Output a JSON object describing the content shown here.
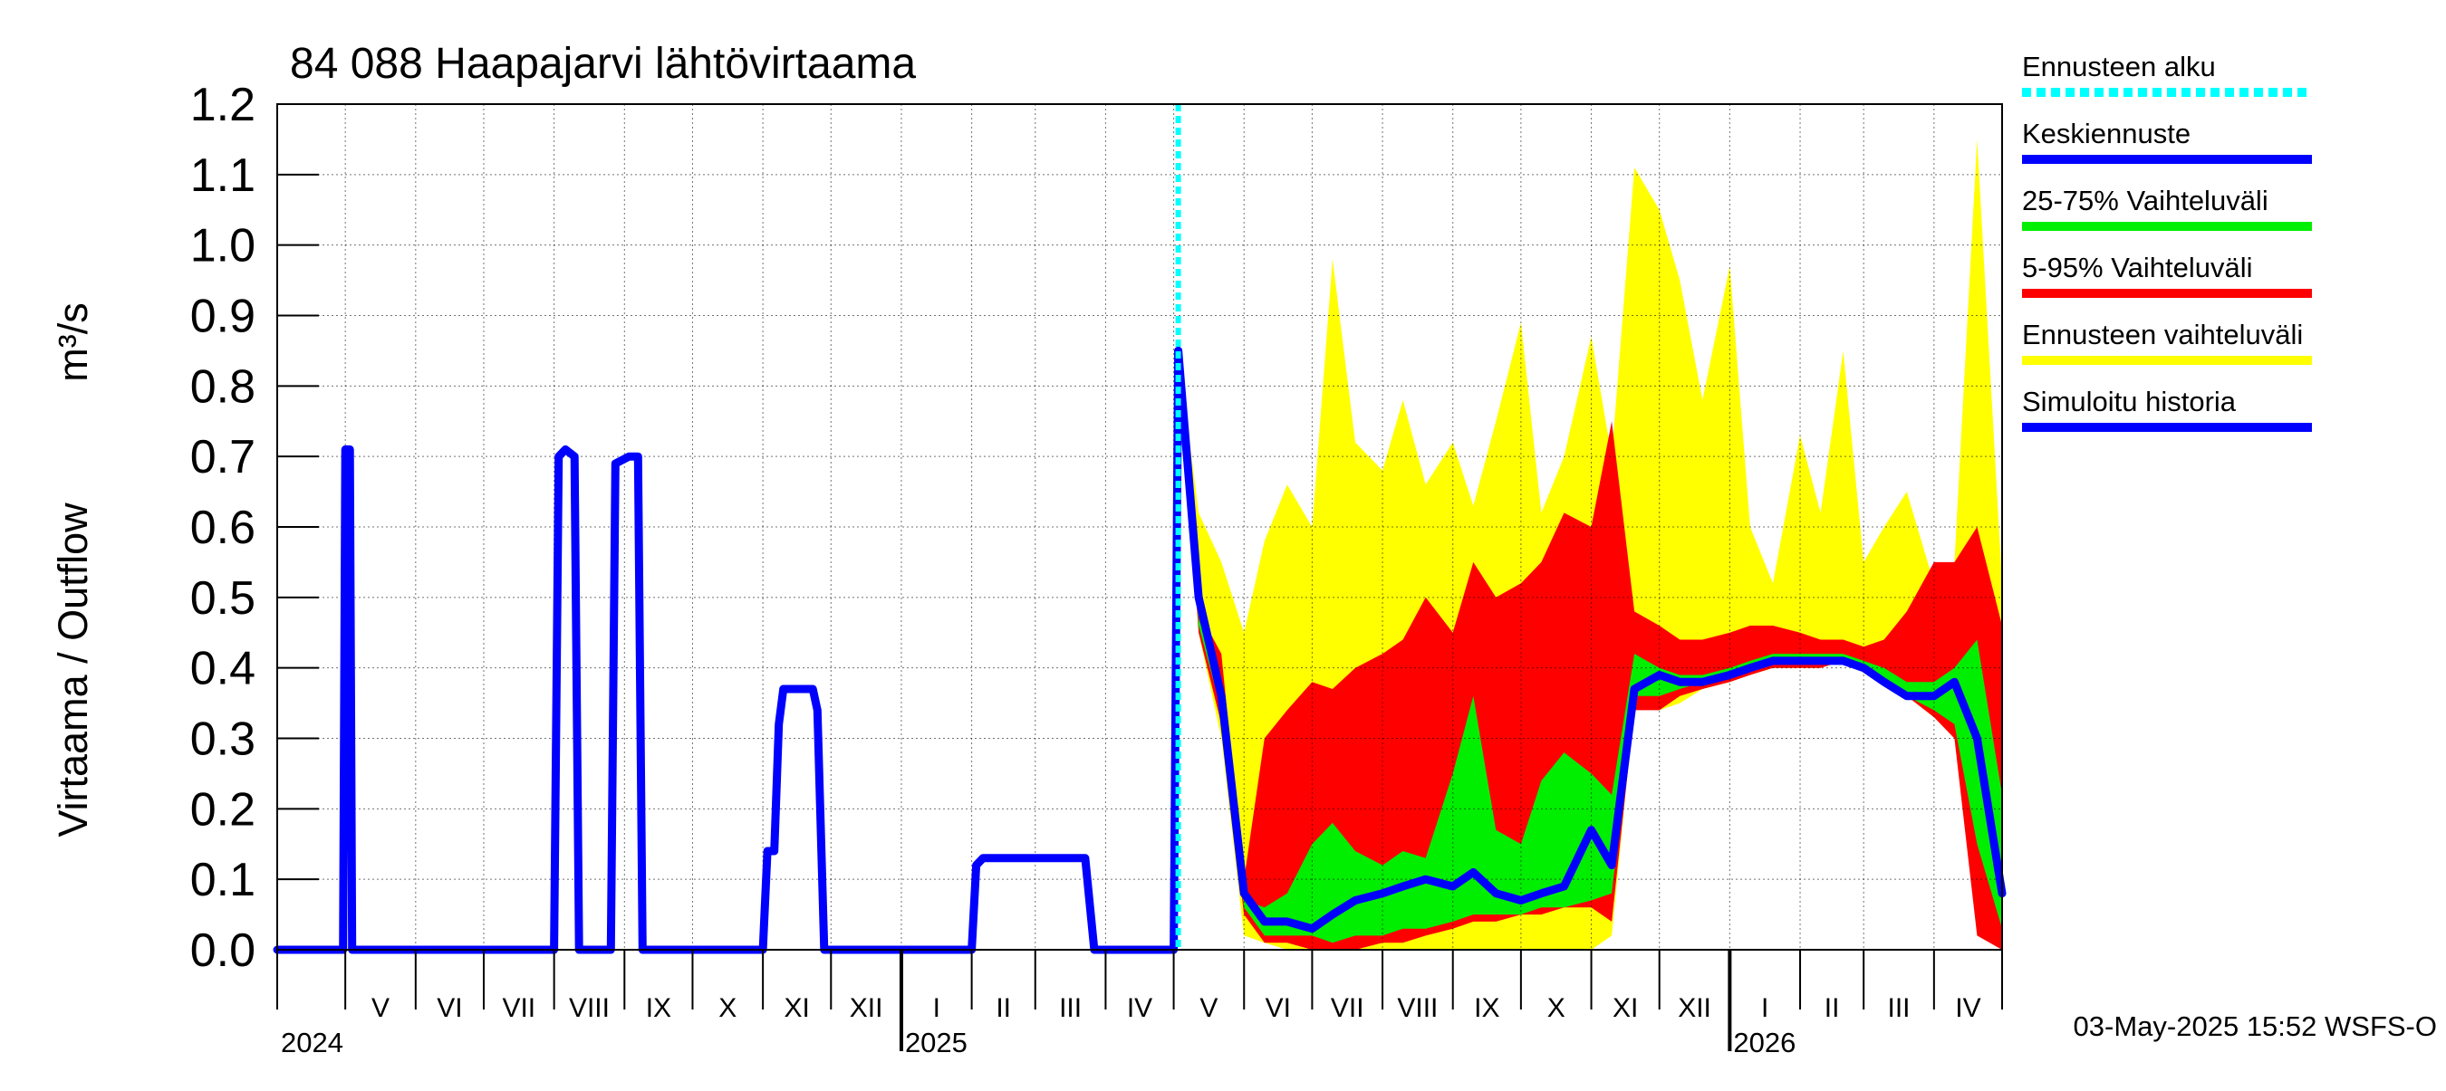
{
  "chart_data": {
    "type": "area",
    "title": "84 088 Haapajarvi lähtövirtaama",
    "ylabel": "Virtaama / Outflow",
    "yunit": "m³/s",
    "ylim": [
      0,
      1.2
    ],
    "yticks": [
      "0.0",
      "0.1",
      "0.2",
      "0.3",
      "0.4",
      "0.5",
      "0.6",
      "0.7",
      "0.8",
      "0.9",
      "1.0",
      "1.1",
      "1.2"
    ],
    "x_range": [
      "2024-04-01",
      "2026-05-01"
    ],
    "forecast_start": "2025-05-03",
    "grid": true,
    "legend_position": "right",
    "months": [
      {
        "label": "V",
        "start": "2024-05-01"
      },
      {
        "label": "VI",
        "start": "2024-06-01"
      },
      {
        "label": "VII",
        "start": "2024-07-01"
      },
      {
        "label": "VIII",
        "start": "2024-08-01"
      },
      {
        "label": "IX",
        "start": "2024-09-01"
      },
      {
        "label": "X",
        "start": "2024-10-01"
      },
      {
        "label": "XI",
        "start": "2024-11-01"
      },
      {
        "label": "XII",
        "start": "2024-12-01"
      },
      {
        "label": "I",
        "start": "2025-01-01"
      },
      {
        "label": "II",
        "start": "2025-02-01"
      },
      {
        "label": "III",
        "start": "2025-03-01"
      },
      {
        "label": "IV",
        "start": "2025-04-01"
      },
      {
        "label": "V",
        "start": "2025-05-01"
      },
      {
        "label": "VI",
        "start": "2025-06-01"
      },
      {
        "label": "VII",
        "start": "2025-07-01"
      },
      {
        "label": "VIII",
        "start": "2025-08-01"
      },
      {
        "label": "IX",
        "start": "2025-09-01"
      },
      {
        "label": "X",
        "start": "2025-10-01"
      },
      {
        "label": "XI",
        "start": "2025-11-01"
      },
      {
        "label": "XII",
        "start": "2025-12-01"
      },
      {
        "label": "I",
        "start": "2026-01-01"
      },
      {
        "label": "II",
        "start": "2026-02-01"
      },
      {
        "label": "III",
        "start": "2026-03-01"
      },
      {
        "label": "IV",
        "start": "2026-04-01"
      }
    ],
    "years": [
      {
        "label": "2024",
        "start": "2024-04-01"
      },
      {
        "label": "2025",
        "start": "2025-01-01"
      },
      {
        "label": "2026",
        "start": "2026-01-01"
      }
    ],
    "series": [
      {
        "name": "Ennusteen vaihteluväli",
        "kind": "band",
        "color": "#ffff00",
        "dates": [
          "2025-05-03",
          "2025-05-12",
          "2025-05-22",
          "2025-06-01",
          "2025-06-10",
          "2025-06-20",
          "2025-07-01",
          "2025-07-10",
          "2025-07-20",
          "2025-08-01",
          "2025-08-10",
          "2025-08-20",
          "2025-09-01",
          "2025-09-10",
          "2025-09-20",
          "2025-10-01",
          "2025-10-10",
          "2025-10-20",
          "2025-11-01",
          "2025-11-10",
          "2025-11-20",
          "2025-12-01",
          "2025-12-10",
          "2025-12-20",
          "2026-01-01",
          "2026-01-10",
          "2026-01-20",
          "2026-02-01",
          "2026-02-10",
          "2026-02-20",
          "2026-03-01",
          "2026-03-10",
          "2026-03-20",
          "2026-04-01",
          "2026-04-10",
          "2026-04-20",
          "2026-05-01"
        ],
        "upper": [
          0.85,
          0.62,
          0.55,
          0.45,
          0.58,
          0.66,
          0.6,
          0.98,
          0.72,
          0.68,
          0.78,
          0.66,
          0.72,
          0.63,
          0.75,
          0.89,
          0.62,
          0.7,
          0.87,
          0.7,
          1.11,
          1.05,
          0.95,
          0.78,
          0.97,
          0.6,
          0.52,
          0.73,
          0.62,
          0.85,
          0.55,
          0.6,
          0.65,
          0.52,
          0.55,
          1.15,
          0.52
        ],
        "lower": [
          0.85,
          0.45,
          0.3,
          0.02,
          0.01,
          0.0,
          0.0,
          0.0,
          0.0,
          0.0,
          0.0,
          0.0,
          0.0,
          0.0,
          0.0,
          0.0,
          0.0,
          0.0,
          0.0,
          0.02,
          0.35,
          0.34,
          0.35,
          0.37,
          0.38,
          0.39,
          0.4,
          0.4,
          0.4,
          0.41,
          0.4,
          0.38,
          0.36,
          0.33,
          0.3,
          0.1,
          0.0
        ]
      },
      {
        "name": "5-95% Vaihteluväli",
        "kind": "band",
        "color": "#ff0000",
        "dates": [
          "2025-05-03",
          "2025-05-12",
          "2025-05-22",
          "2025-06-01",
          "2025-06-10",
          "2025-06-20",
          "2025-07-01",
          "2025-07-10",
          "2025-07-20",
          "2025-08-01",
          "2025-08-10",
          "2025-08-20",
          "2025-09-01",
          "2025-09-10",
          "2025-09-20",
          "2025-10-01",
          "2025-10-10",
          "2025-10-20",
          "2025-11-01",
          "2025-11-10",
          "2025-11-20",
          "2025-12-01",
          "2025-12-10",
          "2025-12-20",
          "2026-01-01",
          "2026-01-10",
          "2026-01-20",
          "2026-02-01",
          "2026-02-10",
          "2026-02-20",
          "2026-03-01",
          "2026-03-10",
          "2026-03-20",
          "2026-04-01",
          "2026-04-10",
          "2026-04-20",
          "2026-05-01"
        ],
        "upper": [
          0.85,
          0.48,
          0.42,
          0.1,
          0.3,
          0.34,
          0.38,
          0.37,
          0.4,
          0.42,
          0.44,
          0.5,
          0.45,
          0.55,
          0.5,
          0.52,
          0.55,
          0.62,
          0.6,
          0.75,
          0.48,
          0.46,
          0.44,
          0.44,
          0.45,
          0.46,
          0.46,
          0.45,
          0.44,
          0.44,
          0.43,
          0.44,
          0.48,
          0.55,
          0.55,
          0.6,
          0.46
        ],
        "lower": [
          0.85,
          0.45,
          0.32,
          0.05,
          0.01,
          0.01,
          0.0,
          0.0,
          0.0,
          0.01,
          0.01,
          0.02,
          0.03,
          0.04,
          0.04,
          0.05,
          0.05,
          0.06,
          0.06,
          0.04,
          0.34,
          0.34,
          0.36,
          0.37,
          0.38,
          0.39,
          0.4,
          0.4,
          0.4,
          0.41,
          0.4,
          0.38,
          0.36,
          0.33,
          0.3,
          0.02,
          0.0
        ]
      },
      {
        "name": "25-75% Vaihteluväli",
        "kind": "band",
        "color": "#00ee00",
        "dates": [
          "2025-05-03",
          "2025-05-12",
          "2025-05-22",
          "2025-06-01",
          "2025-06-10",
          "2025-06-20",
          "2025-07-01",
          "2025-07-10",
          "2025-07-20",
          "2025-08-01",
          "2025-08-10",
          "2025-08-20",
          "2025-09-01",
          "2025-09-10",
          "2025-09-20",
          "2025-10-01",
          "2025-10-10",
          "2025-10-20",
          "2025-11-01",
          "2025-11-10",
          "2025-11-20",
          "2025-12-01",
          "2025-12-10",
          "2025-12-20",
          "2026-01-01",
          "2026-01-10",
          "2026-01-20",
          "2026-02-01",
          "2026-02-10",
          "2026-02-20",
          "2026-03-01",
          "2026-03-10",
          "2026-03-20",
          "2026-04-01",
          "2026-04-10",
          "2026-04-20",
          "2026-05-01"
        ],
        "upper": [
          0.85,
          0.47,
          0.38,
          0.07,
          0.06,
          0.08,
          0.15,
          0.18,
          0.14,
          0.12,
          0.14,
          0.13,
          0.25,
          0.36,
          0.17,
          0.15,
          0.24,
          0.28,
          0.25,
          0.22,
          0.42,
          0.4,
          0.39,
          0.39,
          0.4,
          0.41,
          0.42,
          0.42,
          0.42,
          0.42,
          0.41,
          0.4,
          0.38,
          0.38,
          0.4,
          0.44,
          0.22
        ],
        "lower": [
          0.85,
          0.46,
          0.34,
          0.06,
          0.02,
          0.02,
          0.02,
          0.01,
          0.02,
          0.02,
          0.03,
          0.03,
          0.04,
          0.05,
          0.05,
          0.05,
          0.06,
          0.06,
          0.07,
          0.08,
          0.36,
          0.36,
          0.37,
          0.38,
          0.39,
          0.4,
          0.41,
          0.41,
          0.41,
          0.41,
          0.4,
          0.38,
          0.36,
          0.34,
          0.32,
          0.15,
          0.03
        ]
      },
      {
        "name": "Keskiennuste",
        "kind": "line",
        "color": "#0000ff",
        "dates": [
          "2025-05-03",
          "2025-05-12",
          "2025-05-22",
          "2025-06-01",
          "2025-06-10",
          "2025-06-20",
          "2025-07-01",
          "2025-07-10",
          "2025-07-20",
          "2025-08-01",
          "2025-08-10",
          "2025-08-20",
          "2025-09-01",
          "2025-09-10",
          "2025-09-20",
          "2025-10-01",
          "2025-10-10",
          "2025-10-20",
          "2025-11-01",
          "2025-11-10",
          "2025-11-20",
          "2025-12-01",
          "2025-12-10",
          "2025-12-20",
          "2026-01-01",
          "2026-01-10",
          "2026-01-20",
          "2026-02-01",
          "2026-02-10",
          "2026-02-20",
          "2026-03-01",
          "2026-03-10",
          "2026-03-20",
          "2026-04-01",
          "2026-04-10",
          "2026-04-20",
          "2026-05-01"
        ],
        "values": [
          0.85,
          0.5,
          0.36,
          0.08,
          0.04,
          0.04,
          0.03,
          0.05,
          0.07,
          0.08,
          0.09,
          0.1,
          0.09,
          0.11,
          0.08,
          0.07,
          0.08,
          0.09,
          0.17,
          0.12,
          0.37,
          0.39,
          0.38,
          0.38,
          0.39,
          0.4,
          0.41,
          0.41,
          0.41,
          0.41,
          0.4,
          0.38,
          0.36,
          0.36,
          0.38,
          0.3,
          0.08
        ]
      },
      {
        "name": "Simuloitu historia",
        "kind": "line",
        "color": "#0000ff",
        "dates": [
          "2024-04-01",
          "2024-04-30",
          "2024-05-01",
          "2024-05-02",
          "2024-05-03",
          "2024-05-04",
          "2024-05-05",
          "2024-08-01",
          "2024-08-03",
          "2024-08-06",
          "2024-08-10",
          "2024-08-12",
          "2024-08-16",
          "2024-08-20",
          "2024-08-26",
          "2024-08-28",
          "2024-09-03",
          "2024-09-07",
          "2024-09-09",
          "2024-11-01",
          "2024-11-03",
          "2024-11-06",
          "2024-11-08",
          "2024-11-10",
          "2024-11-12",
          "2024-11-23",
          "2024-11-25",
          "2024-11-28",
          "2024-12-01",
          "2025-01-01",
          "2025-02-01",
          "2025-02-03",
          "2025-02-06",
          "2025-03-20",
          "2025-03-23",
          "2025-03-27",
          "2025-04-01",
          "2025-05-01",
          "2025-05-03"
        ],
        "values": [
          0.0,
          0.0,
          0.71,
          0.71,
          0.71,
          0.0,
          0.0,
          0.0,
          0.7,
          0.71,
          0.7,
          0.0,
          0.0,
          0.0,
          0.0,
          0.69,
          0.7,
          0.7,
          0.0,
          0.0,
          0.14,
          0.14,
          0.32,
          0.37,
          0.37,
          0.37,
          0.34,
          0.0,
          0.0,
          0.0,
          0.0,
          0.12,
          0.13,
          0.13,
          0.13,
          0.0,
          0.0,
          0.0,
          0.85
        ]
      }
    ],
    "legend": [
      {
        "label": "Ennusteen alku",
        "color": "#00ffff",
        "style": "dotted"
      },
      {
        "label": "Keskiennuste",
        "color": "#0000ff",
        "style": "solid"
      },
      {
        "label": "25-75% Vaihteluväli",
        "color": "#00ee00",
        "style": "solid"
      },
      {
        "label": "5-95% Vaihteluväli",
        "color": "#ff0000",
        "style": "solid"
      },
      {
        "label": "Ennusteen vaihteluväli",
        "color": "#ffff00",
        "style": "solid"
      },
      {
        "label": "Simuloitu historia",
        "color": "#0000ff",
        "style": "solid"
      }
    ]
  },
  "footer": {
    "timestamp": "03-May-2025 15:52 WSFS-O"
  }
}
